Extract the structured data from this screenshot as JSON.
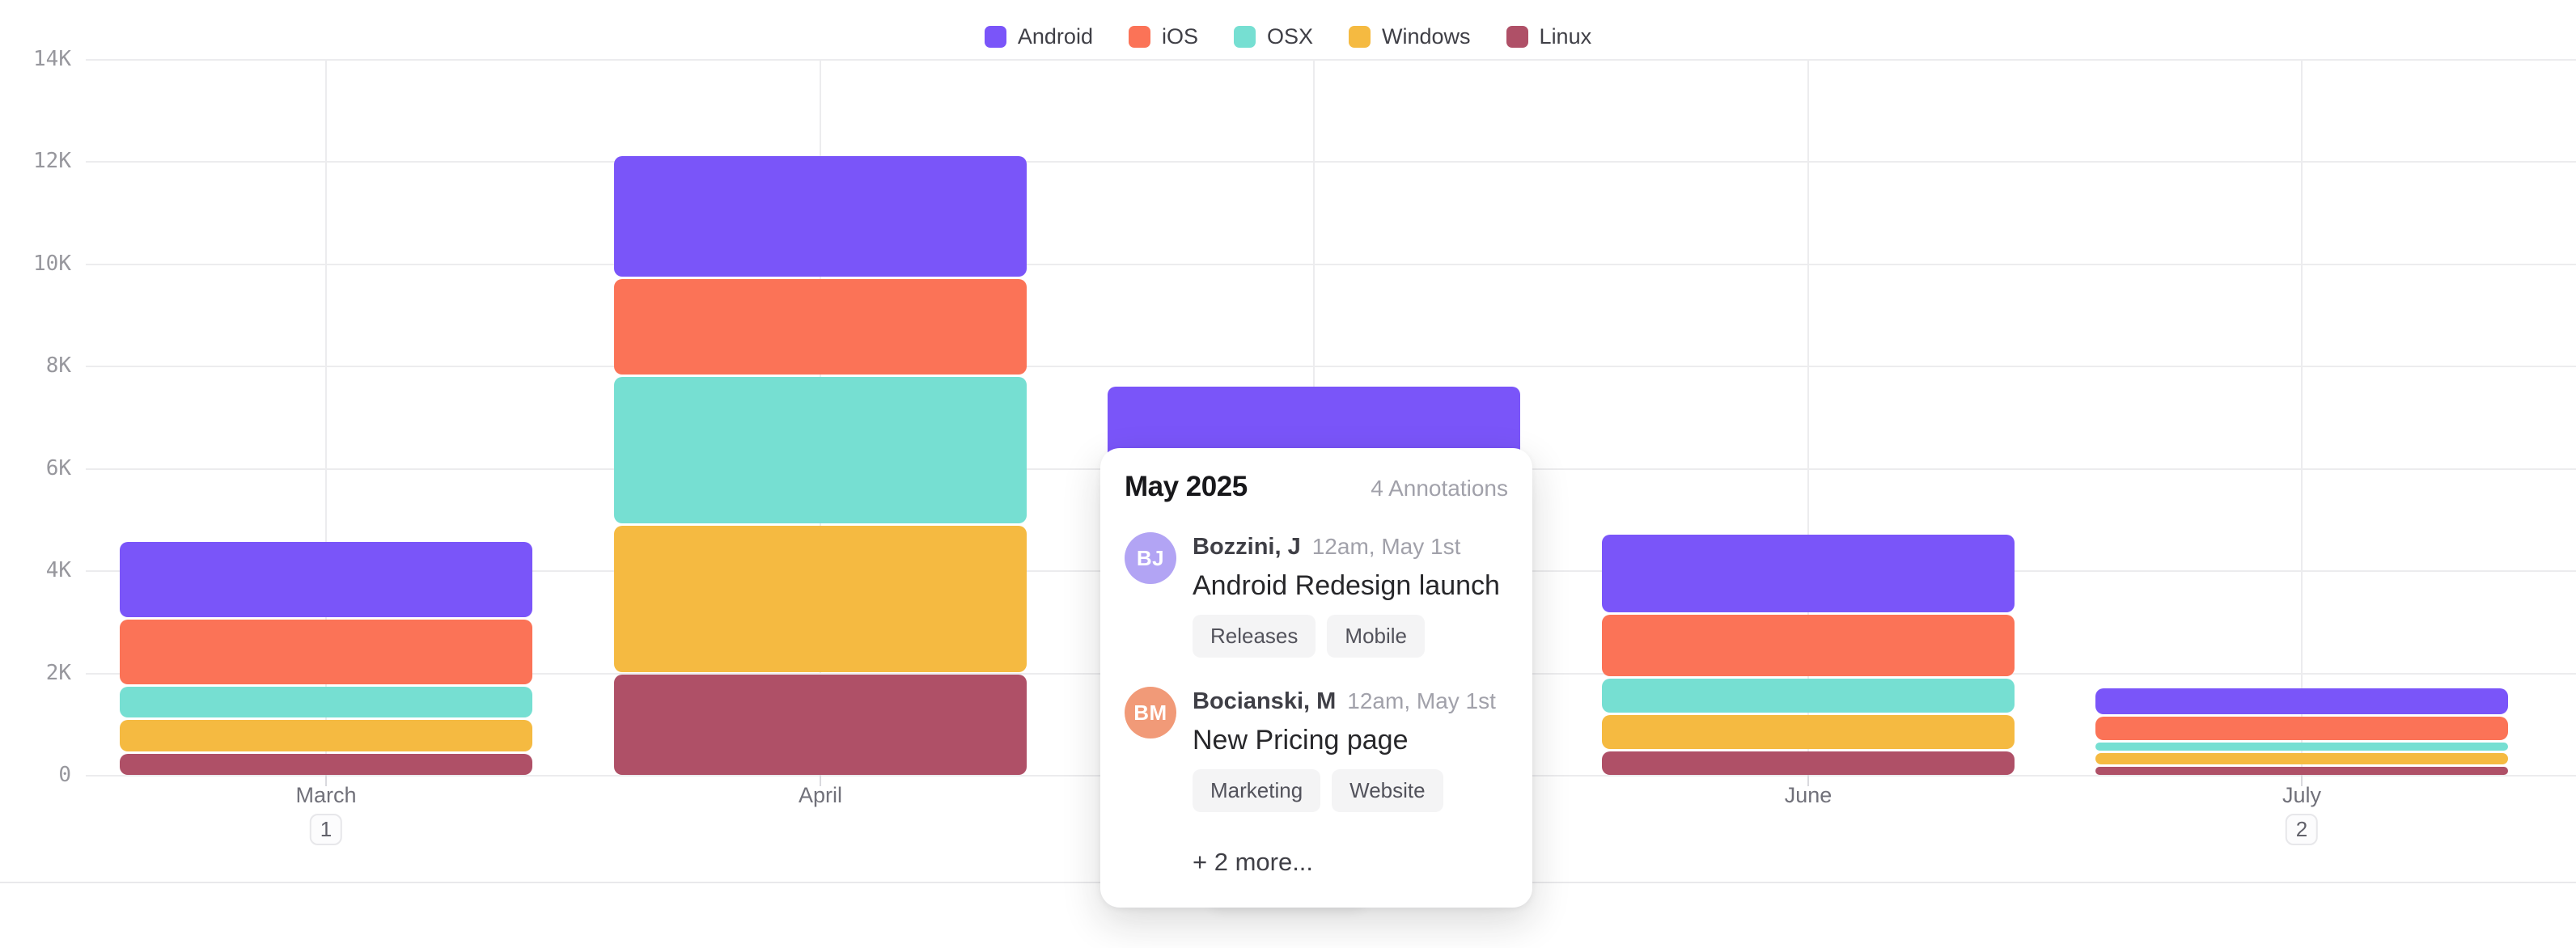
{
  "legend": {
    "position": "top"
  },
  "chart_data": {
    "type": "bar",
    "stacked": true,
    "title": "",
    "xlabel": "",
    "ylabel": "",
    "categories": [
      "March",
      "April",
      "May",
      "June",
      "July"
    ],
    "series": [
      {
        "name": "Android",
        "color": "#7a55f9",
        "values": [
          1500,
          2400,
          2300,
          1550,
          550
        ]
      },
      {
        "name": "iOS",
        "color": "#fb7357",
        "values": [
          1300,
          1900,
          1700,
          1250,
          500
        ]
      },
      {
        "name": "OSX",
        "color": "#76dfd2",
        "values": [
          650,
          2900,
          1400,
          700,
          200
        ]
      },
      {
        "name": "Windows",
        "color": "#f5ba41",
        "values": [
          650,
          2900,
          1300,
          700,
          250
        ]
      },
      {
        "name": "Linux",
        "color": "#af5067",
        "values": [
          450,
          2000,
          900,
          500,
          200
        ]
      }
    ],
    "ylim": [
      0,
      14000
    ],
    "yticks": [
      "14K",
      "12K",
      "10K",
      "8K",
      "6K",
      "4K",
      "2K",
      "0"
    ],
    "grid": true,
    "legend_position": "top"
  },
  "annotation_badges": [
    {
      "category": "March",
      "count": "1",
      "active": false
    },
    {
      "category": "May",
      "count": "4",
      "active": true
    },
    {
      "category": "July",
      "count": "2",
      "active": false
    }
  ],
  "badge_active_color": "#5c4ccf",
  "tooltip": {
    "title": "May 2025",
    "count_label": "4 Annotations",
    "items": [
      {
        "initials": "BJ",
        "avatar_color": "#b2a4f4",
        "author": "Bozzini, J",
        "time": "12am, May 1st",
        "text": "Android Redesign launch",
        "tags": [
          "Releases",
          "Mobile"
        ]
      },
      {
        "initials": "BM",
        "avatar_color": "#f19a78",
        "author": "Bocianski, M",
        "time": "12am, May 1st",
        "text": "New Pricing page",
        "tags": [
          "Marketing",
          "Website"
        ]
      }
    ],
    "more_label": "+ 2 more..."
  },
  "layout_toggle": {
    "options": [
      "split-rows-layout",
      "top-bar-layout",
      "bottom-bar-layout"
    ],
    "selected_index": 0
  }
}
